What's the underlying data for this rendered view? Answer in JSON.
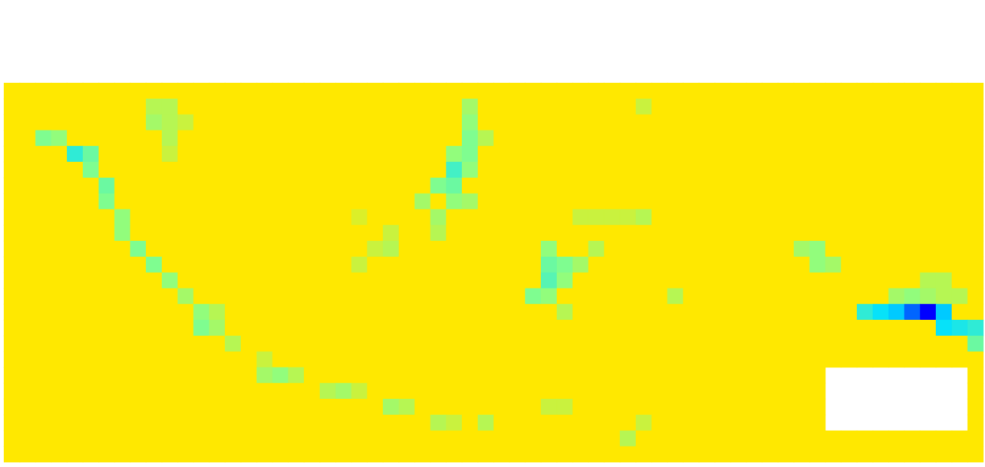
{
  "chart_data": {
    "type": "heatmap",
    "tick_labels": false,
    "zlim": [
      0,
      1
    ],
    "cells": [
      [
        1,
        1,
        1,
        1,
        1,
        1,
        1,
        1,
        1,
        1,
        1,
        1,
        1,
        1,
        1,
        1,
        1,
        1,
        1,
        1,
        1,
        1,
        1,
        1,
        1,
        1,
        1,
        1,
        1,
        1,
        1,
        1,
        1,
        1,
        1,
        1,
        1,
        1,
        1,
        1,
        1,
        1,
        1,
        1,
        1,
        1,
        1,
        1,
        1,
        1,
        1,
        1,
        1,
        1,
        1,
        1,
        1,
        1,
        1,
        1,
        1,
        1
      ],
      [
        1,
        1,
        1,
        1,
        1,
        1,
        1,
        1,
        1,
        0.8,
        0.8,
        1,
        1,
        1,
        1,
        1,
        1,
        1,
        1,
        1,
        1,
        1,
        1,
        1,
        1,
        1,
        1,
        1,
        1,
        0.75,
        1,
        1,
        1,
        1,
        1,
        1,
        1,
        1,
        1,
        1,
        0.85,
        1,
        1,
        1,
        1,
        1,
        1,
        1,
        1,
        1,
        1,
        1,
        1,
        1,
        1,
        1,
        1,
        1,
        1,
        1,
        1,
        1
      ],
      [
        1,
        1,
        1,
        1,
        1,
        1,
        1,
        1,
        1,
        0.75,
        0.8,
        0.85,
        1,
        1,
        1,
        1,
        1,
        1,
        1,
        1,
        1,
        1,
        1,
        1,
        1,
        1,
        1,
        1,
        1,
        0.7,
        1,
        1,
        1,
        1,
        1,
        1,
        1,
        1,
        1,
        1,
        1,
        1,
        1,
        1,
        1,
        1,
        1,
        1,
        1,
        1,
        1,
        1,
        1,
        1,
        1,
        1,
        1,
        1,
        1,
        1,
        1,
        1
      ],
      [
        1,
        1,
        0.65,
        0.7,
        1,
        1,
        1,
        1,
        1,
        1,
        0.8,
        1,
        1,
        1,
        1,
        1,
        1,
        1,
        1,
        1,
        1,
        1,
        1,
        1,
        1,
        1,
        1,
        1,
        1,
        0.65,
        0.8,
        1,
        1,
        1,
        1,
        1,
        1,
        1,
        1,
        1,
        1,
        1,
        1,
        1,
        1,
        1,
        1,
        1,
        1,
        1,
        1,
        1,
        1,
        1,
        1,
        1,
        1,
        1,
        1,
        1,
        1,
        1
      ],
      [
        1,
        1,
        1,
        1,
        0.45,
        0.6,
        1,
        1,
        1,
        1,
        0.85,
        1,
        1,
        1,
        1,
        1,
        1,
        1,
        1,
        1,
        1,
        1,
        1,
        1,
        1,
        1,
        1,
        1,
        0.7,
        0.65,
        1,
        1,
        1,
        1,
        1,
        1,
        1,
        1,
        1,
        1,
        1,
        1,
        1,
        1,
        1,
        1,
        1,
        1,
        1,
        1,
        1,
        1,
        1,
        1,
        1,
        1,
        1,
        1,
        1,
        1,
        1,
        1
      ],
      [
        1,
        1,
        1,
        1,
        1,
        0.65,
        1,
        1,
        1,
        1,
        1,
        1,
        1,
        1,
        1,
        1,
        1,
        1,
        1,
        1,
        1,
        1,
        1,
        1,
        1,
        1,
        1,
        1,
        0.5,
        0.7,
        1,
        1,
        1,
        1,
        1,
        1,
        1,
        1,
        1,
        1,
        1,
        1,
        1,
        1,
        1,
        1,
        1,
        1,
        1,
        1,
        1,
        1,
        1,
        1,
        1,
        1,
        1,
        1,
        1,
        1,
        1,
        1
      ],
      [
        1,
        1,
        1,
        1,
        1,
        1,
        0.6,
        1,
        1,
        1,
        1,
        1,
        1,
        1,
        1,
        1,
        1,
        1,
        1,
        1,
        1,
        1,
        1,
        1,
        1,
        1,
        1,
        0.65,
        0.6,
        1,
        1,
        1,
        1,
        1,
        1,
        1,
        1,
        1,
        1,
        1,
        1,
        1,
        1,
        1,
        1,
        1,
        1,
        1,
        1,
        1,
        1,
        1,
        1,
        1,
        1,
        1,
        1,
        1,
        1,
        1,
        1,
        1
      ],
      [
        1,
        1,
        1,
        1,
        1,
        1,
        0.65,
        1,
        1,
        1,
        1,
        1,
        1,
        1,
        1,
        1,
        1,
        1,
        1,
        1,
        1,
        1,
        1,
        1,
        1,
        1,
        0.75,
        1,
        0.7,
        0.75,
        1,
        1,
        1,
        1,
        1,
        1,
        1,
        1,
        1,
        1,
        1,
        1,
        1,
        1,
        1,
        1,
        1,
        1,
        1,
        1,
        1,
        1,
        1,
        1,
        1,
        1,
        1,
        1,
        1,
        1,
        1,
        1
      ],
      [
        1,
        1,
        1,
        1,
        1,
        1,
        1,
        0.7,
        1,
        1,
        1,
        1,
        1,
        1,
        1,
        1,
        1,
        1,
        1,
        1,
        1,
        1,
        0.9,
        1,
        1,
        1,
        1,
        0.75,
        1,
        1,
        1,
        1,
        1,
        1,
        1,
        1,
        0.85,
        0.85,
        0.85,
        0.85,
        0.8,
        1,
        1,
        1,
        1,
        1,
        1,
        1,
        1,
        1,
        1,
        1,
        1,
        1,
        1,
        1,
        1,
        1,
        1,
        1,
        1,
        1
      ],
      [
        1,
        1,
        1,
        1,
        1,
        1,
        1,
        0.7,
        1,
        1,
        1,
        1,
        1,
        1,
        1,
        1,
        1,
        1,
        1,
        1,
        1,
        1,
        1,
        1,
        0.85,
        1,
        1,
        0.8,
        1,
        1,
        1,
        1,
        1,
        1,
        1,
        1,
        1,
        1,
        1,
        1,
        1,
        1,
        1,
        1,
        1,
        1,
        1,
        1,
        1,
        1,
        1,
        1,
        1,
        1,
        1,
        1,
        1,
        1,
        1,
        1,
        1,
        1
      ],
      [
        1,
        1,
        1,
        1,
        1,
        1,
        1,
        1,
        0.65,
        1,
        1,
        1,
        1,
        1,
        1,
        1,
        1,
        1,
        1,
        1,
        1,
        1,
        1,
        0.85,
        0.8,
        1,
        1,
        1,
        1,
        1,
        1,
        1,
        1,
        1,
        0.7,
        1,
        1,
        0.8,
        1,
        1,
        1,
        1,
        1,
        1,
        1,
        1,
        1,
        1,
        1,
        1,
        0.75,
        0.7,
        1,
        1,
        1,
        1,
        1,
        1,
        1,
        1,
        1,
        1
      ],
      [
        1,
        1,
        1,
        1,
        1,
        1,
        1,
        1,
        1,
        0.65,
        1,
        1,
        1,
        1,
        1,
        1,
        1,
        1,
        1,
        1,
        1,
        1,
        0.85,
        1,
        1,
        1,
        1,
        1,
        1,
        1,
        1,
        1,
        1,
        1,
        0.6,
        0.65,
        0.75,
        1,
        1,
        1,
        1,
        1,
        1,
        1,
        1,
        1,
        1,
        1,
        1,
        1,
        1,
        0.7,
        0.75,
        1,
        1,
        1,
        1,
        1,
        1,
        1,
        1,
        1
      ],
      [
        1,
        1,
        1,
        1,
        1,
        1,
        1,
        1,
        1,
        1,
        0.7,
        1,
        1,
        1,
        1,
        1,
        1,
        1,
        1,
        1,
        1,
        1,
        1,
        1,
        1,
        1,
        1,
        1,
        1,
        1,
        1,
        1,
        1,
        1,
        0.55,
        0.7,
        1,
        1,
        1,
        1,
        1,
        1,
        1,
        1,
        1,
        1,
        1,
        1,
        1,
        1,
        1,
        1,
        1,
        1,
        1,
        1,
        1,
        1,
        0.8,
        0.8,
        1,
        1
      ],
      [
        1,
        1,
        1,
        1,
        1,
        1,
        1,
        1,
        1,
        1,
        1,
        0.75,
        1,
        1,
        1,
        1,
        1,
        1,
        1,
        1,
        1,
        1,
        1,
        1,
        1,
        1,
        1,
        1,
        1,
        1,
        1,
        1,
        1,
        0.65,
        0.7,
        1,
        1,
        1,
        1,
        1,
        1,
        1,
        0.8,
        1,
        1,
        1,
        1,
        1,
        1,
        1,
        1,
        1,
        1,
        1,
        1,
        1,
        0.75,
        0.7,
        0.75,
        0.8,
        0.8,
        1
      ],
      [
        1,
        1,
        1,
        1,
        1,
        1,
        1,
        1,
        1,
        1,
        1,
        1,
        0.7,
        0.8,
        1,
        1,
        1,
        1,
        1,
        1,
        1,
        1,
        1,
        1,
        1,
        1,
        1,
        1,
        1,
        1,
        1,
        1,
        1,
        1,
        1,
        0.8,
        1,
        1,
        1,
        1,
        1,
        1,
        1,
        1,
        1,
        1,
        1,
        1,
        1,
        1,
        1,
        1,
        1,
        1,
        0.45,
        0.35,
        0.3,
        0.15,
        0,
        0.3,
        1,
        1
      ],
      [
        1,
        1,
        1,
        1,
        1,
        1,
        1,
        1,
        1,
        1,
        1,
        1,
        0.65,
        0.75,
        1,
        1,
        1,
        1,
        1,
        1,
        1,
        1,
        1,
        1,
        1,
        1,
        1,
        1,
        1,
        1,
        1,
        1,
        1,
        1,
        1,
        1,
        1,
        1,
        1,
        1,
        1,
        1,
        1,
        1,
        1,
        1,
        1,
        1,
        1,
        1,
        1,
        1,
        1,
        1,
        1,
        1,
        1,
        1,
        1,
        0.35,
        0.4,
        0.45
      ],
      [
        1,
        1,
        1,
        1,
        1,
        1,
        1,
        1,
        1,
        1,
        1,
        1,
        1,
        1,
        0.8,
        1,
        1,
        1,
        1,
        1,
        1,
        1,
        1,
        1,
        1,
        1,
        1,
        1,
        1,
        1,
        1,
        1,
        1,
        1,
        1,
        1,
        1,
        1,
        1,
        1,
        1,
        1,
        1,
        1,
        1,
        1,
        1,
        1,
        1,
        1,
        1,
        1,
        1,
        1,
        1,
        1,
        1,
        1,
        1,
        1,
        1,
        0.6
      ],
      [
        1,
        1,
        1,
        1,
        1,
        1,
        1,
        1,
        1,
        1,
        1,
        1,
        1,
        1,
        1,
        1,
        0.85,
        1,
        1,
        1,
        1,
        1,
        1,
        1,
        1,
        1,
        1,
        1,
        1,
        1,
        1,
        1,
        1,
        1,
        1,
        1,
        1,
        1,
        1,
        1,
        1,
        1,
        1,
        1,
        1,
        1,
        1,
        1,
        1,
        1,
        1,
        1,
        1,
        1,
        1,
        1,
        1,
        1,
        1,
        1,
        1,
        1
      ],
      [
        1,
        1,
        1,
        1,
        1,
        1,
        1,
        1,
        1,
        1,
        1,
        1,
        1,
        1,
        1,
        1,
        0.75,
        0.7,
        0.8,
        1,
        1,
        1,
        1,
        1,
        1,
        1,
        1,
        1,
        1,
        1,
        1,
        1,
        1,
        1,
        1,
        1,
        1,
        1,
        1,
        1,
        1,
        1,
        1,
        1,
        1,
        1,
        1,
        1,
        1,
        1,
        1,
        1,
        null,
        null,
        null,
        null,
        null,
        null,
        null,
        null,
        null,
        1
      ],
      [
        1,
        1,
        1,
        1,
        1,
        1,
        1,
        1,
        1,
        1,
        1,
        1,
        1,
        1,
        1,
        1,
        1,
        1,
        1,
        1,
        0.8,
        0.75,
        0.85,
        1,
        1,
        1,
        1,
        1,
        1,
        1,
        1,
        1,
        1,
        1,
        1,
        1,
        1,
        1,
        1,
        1,
        1,
        1,
        1,
        1,
        1,
        1,
        1,
        1,
        1,
        1,
        1,
        1,
        null,
        null,
        null,
        null,
        null,
        null,
        null,
        null,
        null,
        1
      ],
      [
        1,
        1,
        1,
        1,
        1,
        1,
        1,
        1,
        1,
        1,
        1,
        1,
        1,
        1,
        1,
        1,
        1,
        1,
        1,
        1,
        1,
        1,
        1,
        1,
        0.75,
        0.8,
        1,
        1,
        1,
        1,
        1,
        1,
        1,
        1,
        0.85,
        0.85,
        1,
        1,
        1,
        1,
        1,
        1,
        1,
        1,
        1,
        1,
        1,
        1,
        1,
        1,
        1,
        1,
        null,
        null,
        null,
        null,
        null,
        null,
        null,
        null,
        null,
        1
      ],
      [
        1,
        1,
        1,
        1,
        1,
        1,
        1,
        1,
        1,
        1,
        1,
        1,
        1,
        1,
        1,
        1,
        1,
        1,
        1,
        1,
        1,
        1,
        1,
        1,
        1,
        1,
        1,
        0.8,
        0.85,
        1,
        0.8,
        1,
        1,
        1,
        1,
        1,
        1,
        1,
        1,
        1,
        0.85,
        1,
        1,
        1,
        1,
        1,
        1,
        1,
        1,
        1,
        1,
        1,
        null,
        null,
        null,
        null,
        null,
        null,
        null,
        null,
        null,
        1
      ],
      [
        1,
        1,
        1,
        1,
        1,
        1,
        1,
        1,
        1,
        1,
        1,
        1,
        1,
        1,
        1,
        1,
        1,
        1,
        1,
        1,
        1,
        1,
        1,
        1,
        1,
        1,
        1,
        1,
        1,
        1,
        1,
        1,
        1,
        1,
        1,
        1,
        1,
        1,
        1,
        0.8,
        1,
        1,
        1,
        1,
        1,
        1,
        1,
        1,
        1,
        1,
        1,
        1,
        1,
        1,
        1,
        1,
        1,
        1,
        1,
        1,
        1,
        1
      ],
      [
        1,
        1,
        1,
        1,
        1,
        1,
        1,
        1,
        1,
        1,
        1,
        1,
        1,
        1,
        1,
        1,
        1,
        1,
        1,
        1,
        1,
        1,
        1,
        1,
        1,
        1,
        1,
        1,
        1,
        1,
        1,
        1,
        1,
        1,
        1,
        1,
        1,
        1,
        1,
        1,
        1,
        1,
        1,
        1,
        1,
        1,
        1,
        1,
        1,
        1,
        1,
        1,
        1,
        1,
        1,
        1,
        1,
        1,
        1,
        1,
        1,
        1
      ]
    ]
  }
}
